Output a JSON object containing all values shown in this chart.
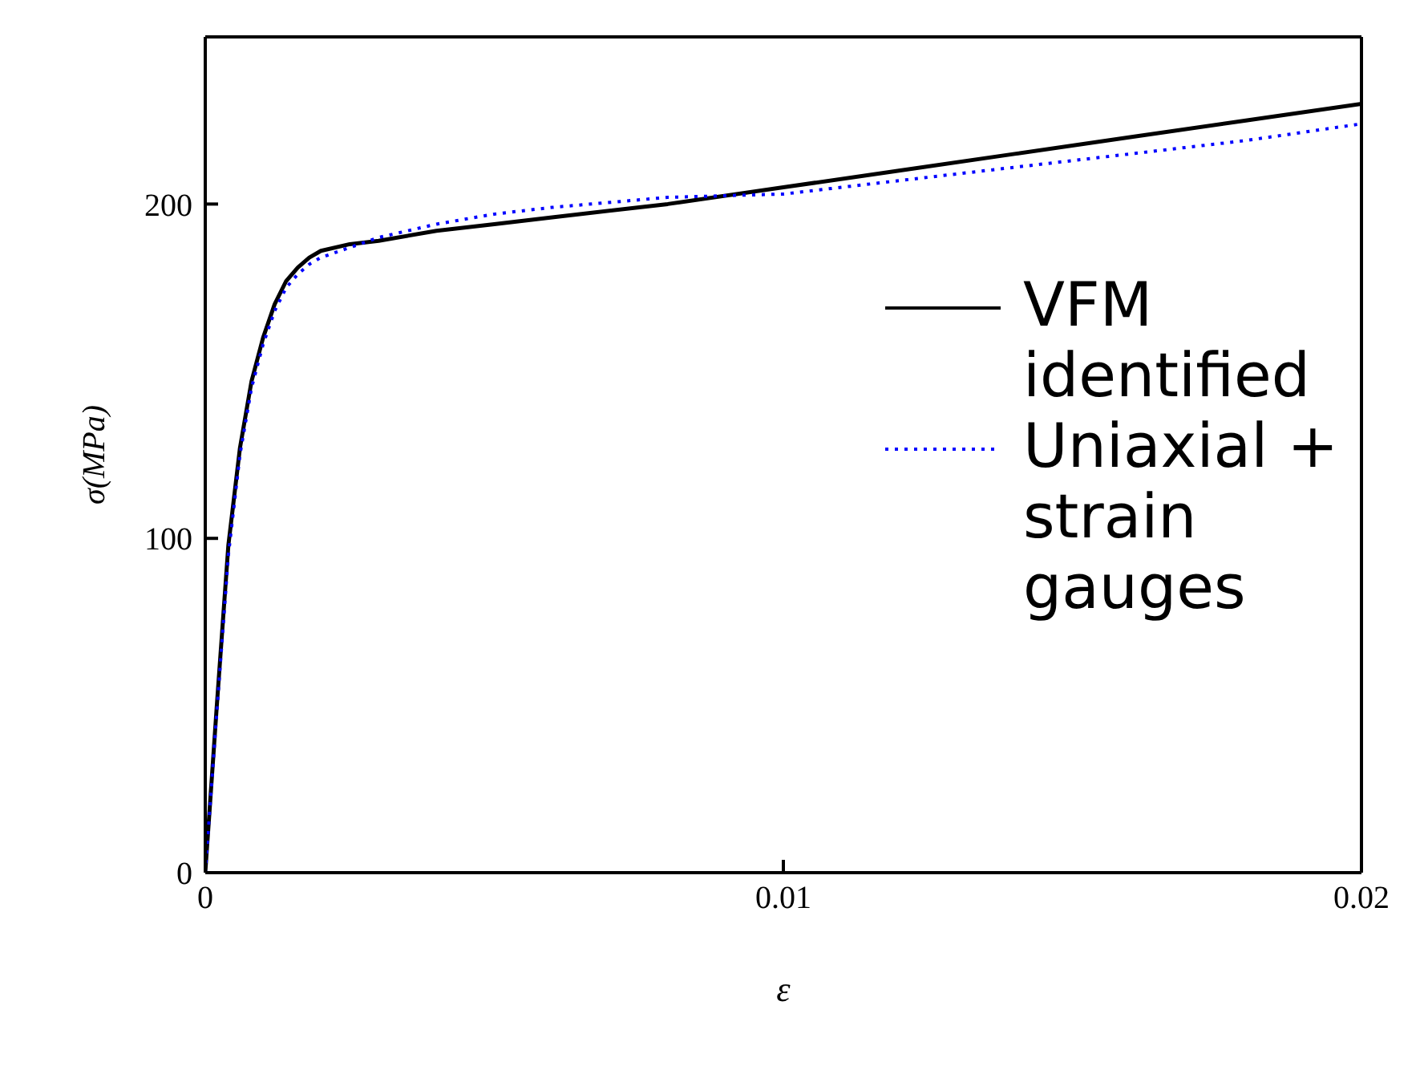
{
  "chart_data": {
    "type": "line",
    "xlabel": "ε",
    "ylabel": "σ(MPa)",
    "xlim": [
      0,
      0.02
    ],
    "xticks": [
      0,
      0.01,
      0.02
    ],
    "ylim": [
      0,
      250
    ],
    "yticks": [
      0,
      100,
      200
    ],
    "legend": "top right",
    "marker": "none",
    "series": [
      {
        "name": "VFM identified",
        "color": "#000000",
        "line_style": "solid",
        "x": [
          0,
          0.0002,
          0.0004,
          0.0006,
          0.0008,
          0.001,
          0.0012,
          0.0014,
          0.0016,
          0.0018,
          0.002,
          0.0025,
          0.003,
          0.004,
          0.005,
          0.006,
          0.008,
          0.01,
          0.012,
          0.014,
          0.016,
          0.018,
          0.02
        ],
        "values": [
          0,
          50,
          98,
          127,
          147,
          160,
          170,
          177,
          181,
          184,
          186,
          188,
          189,
          192,
          194,
          196,
          200,
          205,
          210,
          215,
          220,
          225,
          230
        ]
      },
      {
        "name": "Uniaxial + strain gauges",
        "color": "#0000ff",
        "line_style": "dotted",
        "x": [
          0,
          0.0002,
          0.0004,
          0.0006,
          0.0008,
          0.001,
          0.0012,
          0.0014,
          0.0016,
          0.0018,
          0.002,
          0.0025,
          0.003,
          0.004,
          0.005,
          0.006,
          0.008,
          0.01,
          0.012,
          0.014,
          0.016,
          0.018,
          0.02
        ],
        "values": [
          0,
          48,
          95,
          125,
          145,
          158,
          168,
          175,
          179,
          182,
          184,
          187,
          190,
          194,
          197,
          199,
          202,
          203,
          207,
          211,
          215,
          219,
          224
        ]
      }
    ]
  }
}
